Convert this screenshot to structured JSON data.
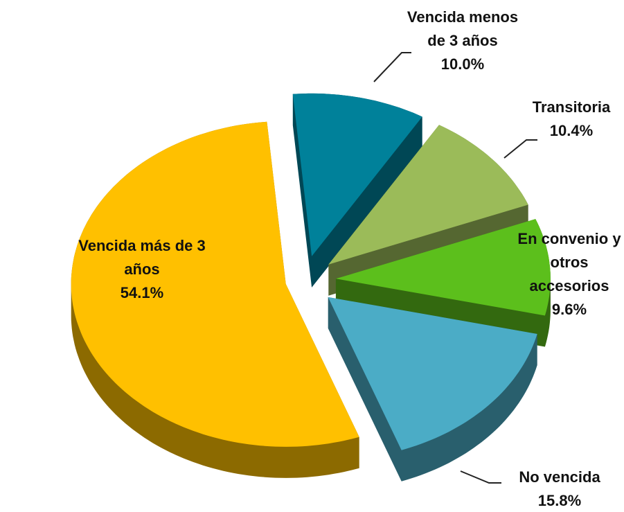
{
  "chart_data": {
    "type": "pie",
    "categories": [
      "Vencida más de 3 años",
      "Vencida menos de 3 años",
      "Transitoria",
      "En convenio y otros accesorios",
      "No vencida"
    ],
    "values": [
      54.1,
      10.0,
      10.4,
      9.6,
      15.8
    ],
    "value_labels": [
      "54.1%",
      "10.0%",
      "10.4%",
      "9.6%",
      "15.8%"
    ],
    "colors": [
      "#ffc000",
      "#00819a",
      "#9bbb59",
      "#5cbf1c",
      "#4bacc6"
    ]
  }
}
